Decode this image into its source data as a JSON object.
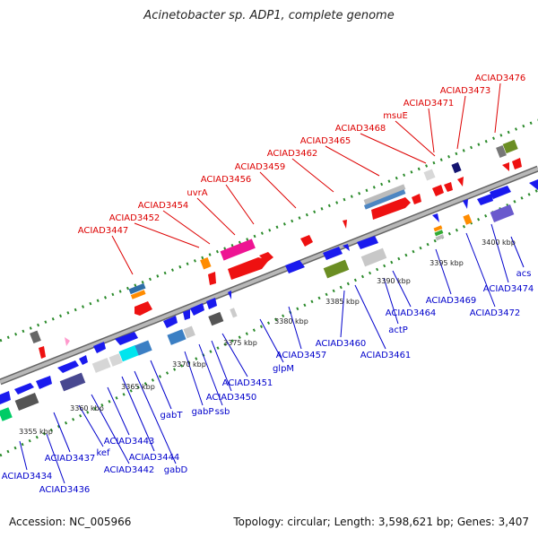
{
  "title": "Acinetobacter sp. ADP1, complete genome",
  "footer": {
    "accession": "Accession: NC_005966",
    "summary": "Topology: circular; Length: 3,598,621 bp; Genes: 3,407"
  },
  "top_labels": [
    "ACIAD3447",
    "ACIAD3452",
    "ACIAD3454",
    "uvrA",
    "ACIAD3456",
    "ACIAD3459",
    "ACIAD3462",
    "ACIAD3465",
    "ACIAD3468",
    "msuE",
    "ACIAD3471",
    "ACIAD3473",
    "ACIAD3476"
  ],
  "bottom_labels": [
    "ACIAD3434",
    "ACIAD3436",
    "ACIAD3437",
    "kef",
    "ACIAD3442",
    "ACIAD3443",
    "ACIAD3444",
    "gabD",
    "gabT",
    "gabP",
    "ssb",
    "ACIAD3450",
    "ACIAD3451",
    "glpM",
    "ACIAD3457",
    "ACIAD3460",
    "ACIAD3461",
    "actP",
    "ACIAD3464",
    "ACIAD3469",
    "ACIAD3472",
    "ACIAD3474",
    "acs"
  ],
  "kbp_labels": [
    "3355 kbp",
    "3360 kbp",
    "3365 kbp",
    "3370 kbp",
    "3375 kbp",
    "3380 kbp",
    "3385 kbp",
    "3390 kbp",
    "3395 kbp",
    "3400 kbp"
  ],
  "colors": {
    "forward": "#ee1111",
    "reverse": "#1a1aee",
    "backbone": "#888888",
    "tick": "#2a8a2a"
  }
}
